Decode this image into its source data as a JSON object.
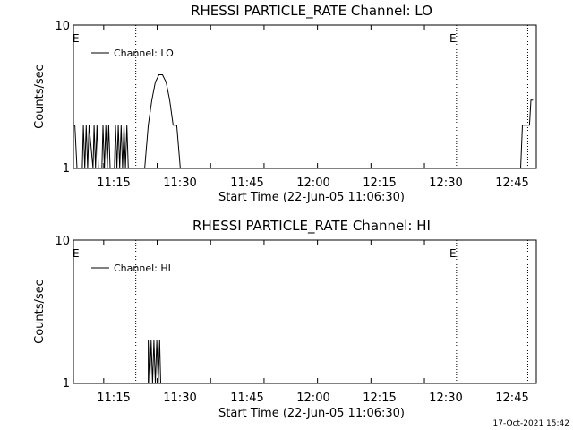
{
  "footer": {
    "timestamp": "17-Oct-2021 15:42"
  },
  "chart_data": [
    {
      "type": "line",
      "title": "RHESSI PARTICLE_RATE Channel: LO",
      "xlabel": "Start Time (22-Jun-05 11:06:30)",
      "ylabel": "Counts/sec",
      "y_scale": "log",
      "ylim": [
        1,
        10
      ],
      "y_ticks": [
        "1",
        "10"
      ],
      "x_ticks": [
        "11:15",
        "11:30",
        "11:45",
        "12:00",
        "12:15",
        "12:30",
        "12:45"
      ],
      "legend": {
        "label": "Channel: LO",
        "placement": "top-left"
      },
      "e_markers": [
        "E",
        "E"
      ],
      "event_lines_min": [
        17.5,
        17.5,
        107.5,
        107.5,
        127.5,
        127.5
      ],
      "series": [
        {
          "name": "Channel: LO",
          "x": [
            0,
            0.4,
            1.0,
            1.4,
            1.6,
            2.5,
            2.8,
            3.2,
            3.6,
            4.0,
            4.4,
            5.5,
            5.8,
            6.2,
            6.6,
            7.0,
            7.4,
            8.0,
            8.3,
            8.7,
            9.1,
            9.5,
            9.9,
            10.3,
            10.7,
            11.5,
            11.8,
            12.2,
            12.6,
            13.0,
            13.4,
            13.8,
            14.2,
            14.6,
            15.0,
            15.4,
            15.8,
            16.4,
            20.0,
            21.0,
            22.0,
            23.0,
            24.0,
            25.0,
            26.0,
            27.0,
            28.0,
            29.0,
            30.0,
            30.7,
            125.5,
            126.0,
            127.0,
            128.0,
            128.4,
            129.0
          ],
          "y": [
            2,
            2,
            1,
            1,
            1,
            1,
            2,
            1,
            2,
            1,
            2,
            1,
            2,
            1,
            2,
            1,
            1,
            1,
            2,
            1,
            2,
            1,
            2,
            1,
            1,
            1,
            2,
            1,
            2,
            1,
            2,
            1,
            2,
            1,
            2,
            1,
            1,
            1,
            1,
            2,
            3,
            4,
            4.5,
            4.5,
            4,
            3,
            2,
            2,
            1,
            1,
            1,
            2,
            2,
            2,
            3,
            3
          ]
        }
      ]
    },
    {
      "type": "line",
      "title": "RHESSI PARTICLE_RATE Channel: HI",
      "xlabel": "Start Time (22-Jun-05 11:06:30)",
      "ylabel": "Counts/sec",
      "y_scale": "log",
      "ylim": [
        1,
        10
      ],
      "y_ticks": [
        "1",
        "10"
      ],
      "x_ticks": [
        "11:15",
        "11:30",
        "11:45",
        "12:00",
        "12:15",
        "12:30",
        "12:45"
      ],
      "legend": {
        "label": "Channel: HI",
        "placement": "top-left"
      },
      "e_markers": [
        "E",
        "E"
      ],
      "event_lines_min": [
        17.5,
        17.5,
        107.5,
        107.5,
        127.5,
        127.5
      ],
      "series": [
        {
          "name": "Channel: HI",
          "x": [
            0,
            20.0,
            21.0,
            21.0,
            21.4,
            21.8,
            22.2,
            22.6,
            23.0,
            23.4,
            23.8,
            24.2,
            24.5,
            129.0
          ],
          "y": [
            1,
            1,
            1,
            2,
            1,
            2,
            1,
            2,
            1,
            2,
            1,
            2,
            1,
            1
          ]
        }
      ]
    }
  ]
}
